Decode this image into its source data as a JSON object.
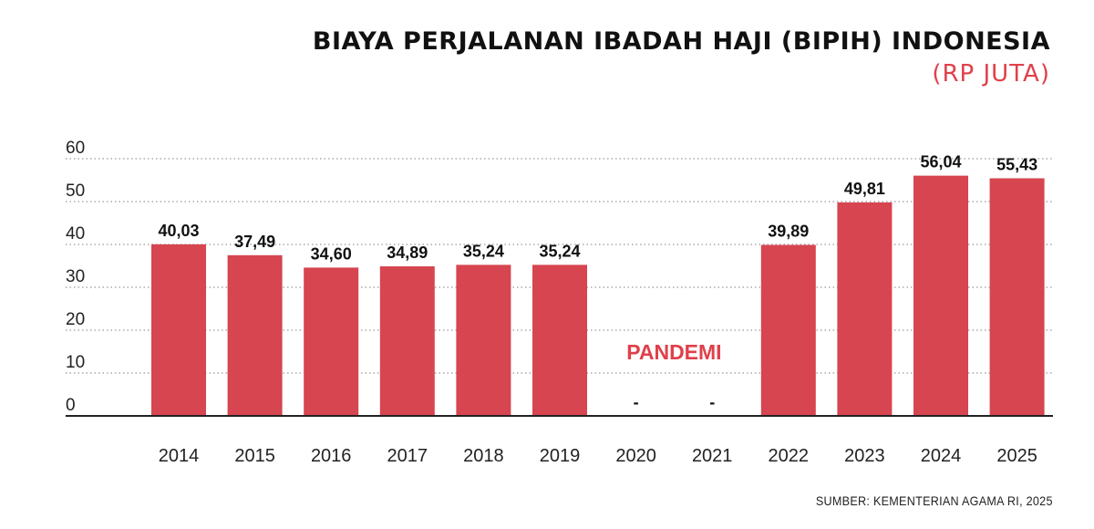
{
  "title": "BIAYA PERJALANAN IBADAH HAJI (BIPIH) INDONESIA",
  "subtitle": "(RP JUTA)",
  "source": "SUMBER: KEMENTERIAN AGAMA RI, 2025",
  "colors": {
    "bar": "#d64550",
    "accent": "#e0404a",
    "grid": "#999999",
    "axis": "#222222"
  },
  "chart_data": {
    "type": "bar",
    "title": "BIAYA PERJALANAN IBADAH HAJI (BIPIH) INDONESIA",
    "subtitle": "(RP JUTA)",
    "xlabel": "",
    "ylabel": "",
    "ylim": [
      0,
      60
    ],
    "yticks": [
      0,
      10,
      20,
      30,
      40,
      50,
      60
    ],
    "grid": true,
    "categories": [
      "2014",
      "2015",
      "2016",
      "2017",
      "2018",
      "2019",
      "2020",
      "2021",
      "2022",
      "2023",
      "2024",
      "2025"
    ],
    "values": [
      40.03,
      37.49,
      34.6,
      34.89,
      35.24,
      35.24,
      null,
      null,
      39.89,
      49.81,
      56.04,
      55.43
    ],
    "data_labels": [
      "40,03",
      "37,49",
      "34,60",
      "34,89",
      "35,24",
      "35,24",
      "-",
      "-",
      "39,89",
      "49,81",
      "56,04",
      "55,43"
    ],
    "annotation": "PANDEMI"
  }
}
